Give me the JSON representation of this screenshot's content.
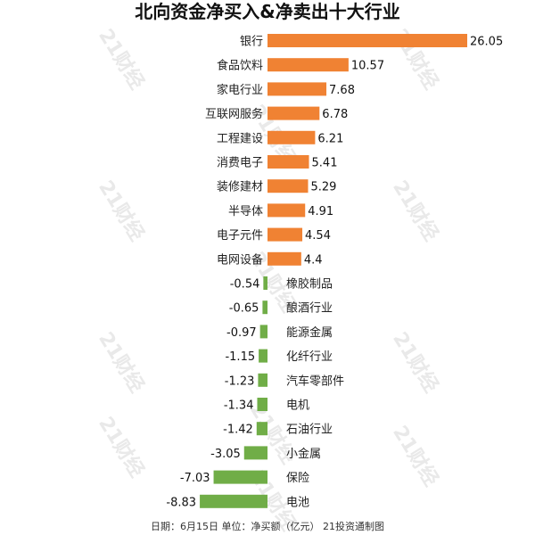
{
  "chart_data": {
    "type": "bar",
    "orientation": "horizontal",
    "title": "北向资金净买入&净卖出十大行业",
    "categories": [
      "银行",
      "食品饮料",
      "家电行业",
      "互联网服务",
      "工程建设",
      "消费电子",
      "装修建材",
      "半导体",
      "电子元件",
      "电网设备",
      "橡胶制品",
      "酿酒行业",
      "能源金属",
      "化纤行业",
      "汽车零部件",
      "电机",
      "石油行业",
      "小金属",
      "保险",
      "电池"
    ],
    "values": [
      26.05,
      10.57,
      7.68,
      6.78,
      6.21,
      5.41,
      5.29,
      4.91,
      4.54,
      4.4,
      -0.54,
      -0.65,
      -0.97,
      -1.15,
      -1.23,
      -1.34,
      -1.42,
      -3.05,
      -7.03,
      -8.83
    ],
    "value_labels": [
      "26.05",
      "10.57",
      "7.68",
      "6.78",
      "6.21",
      "5.41",
      "5.29",
      "4.91",
      "4.54",
      "4.4",
      "-0.54",
      "-0.65",
      "-0.97",
      "-1.15",
      "-1.23",
      "-1.34",
      "-1.42",
      "-3.05",
      "-7.03",
      "-8.83"
    ],
    "colors": {
      "positive": "#F08233",
      "negative": "#70AD47"
    },
    "grid": false,
    "footer": "日期：6月15日 单位：净买额（亿元） 21投资通制图",
    "watermark": "21财经"
  }
}
